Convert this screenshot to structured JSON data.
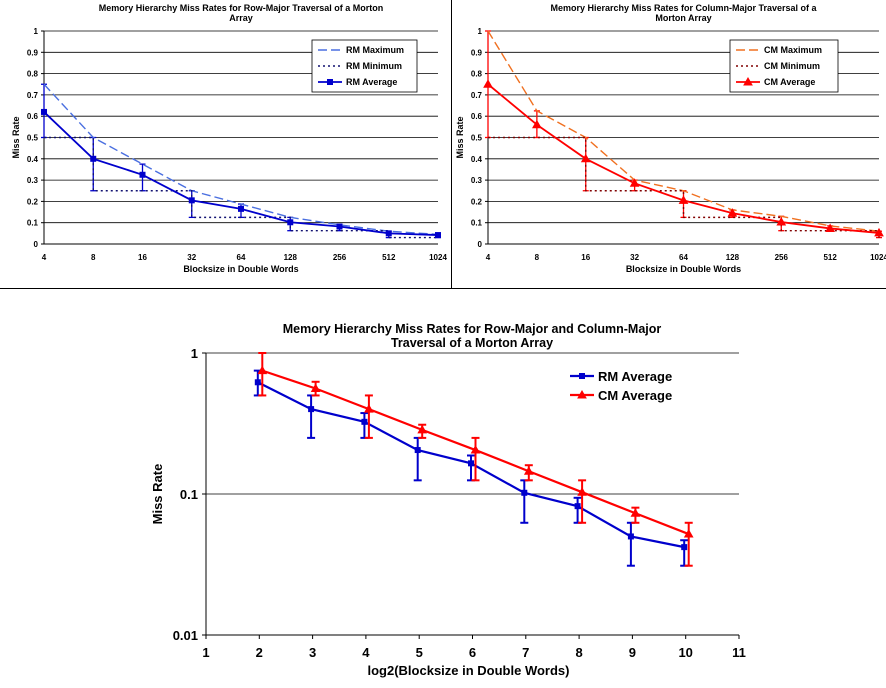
{
  "chart_data": [
    {
      "type": "line",
      "title_lines": [
        "Memory Hierarchy Miss Rates for Row-Major Traversal of a Morton",
        "Array"
      ],
      "xlabel": "Blocksize in Double Words",
      "ylabel": "Miss Rate",
      "categories": [
        "4",
        "8",
        "16",
        "32",
        "64",
        "128",
        "256",
        "512",
        "1024"
      ],
      "yticks": [
        "0",
        "0.1",
        "0.2",
        "0.3",
        "0.4",
        "0.5",
        "0.6",
        "0.7",
        "0.8",
        "0.9",
        "1"
      ],
      "ylim": [
        0,
        1
      ],
      "grid": true,
      "legend_position": "top-right",
      "series": [
        {
          "name": "RM Maximum",
          "values": [
            0.75,
            0.5,
            0.375,
            0.25,
            0.1875,
            0.125,
            0.09,
            0.06,
            0.045
          ],
          "color": "#4a6fe0",
          "style": "long-dash"
        },
        {
          "name": "RM Minimum",
          "values": [
            0.5,
            0.25,
            0.25,
            0.125,
            0.125,
            0.0625,
            0.0625,
            0.03,
            0.03
          ],
          "color": "#101070",
          "style": "dotted"
        },
        {
          "name": "RM Average",
          "values": [
            0.62,
            0.4,
            0.325,
            0.205,
            0.165,
            0.102,
            0.082,
            0.05,
            0.042
          ],
          "color": "#0000cc",
          "style": "solid",
          "marker": "square"
        }
      ]
    },
    {
      "type": "line",
      "title_lines": [
        "Memory Hierarchy Miss Rates for Column-Major Traversal of a",
        "Morton Array"
      ],
      "xlabel": "Blocksize in Double Words",
      "ylabel": "Miss Rate",
      "categories": [
        "4",
        "8",
        "16",
        "32",
        "64",
        "128",
        "256",
        "512",
        "1024"
      ],
      "yticks": [
        "0",
        "0.1",
        "0.2",
        "0.3",
        "0.4",
        "0.5",
        "0.6",
        "0.7",
        "0.8",
        "0.9",
        "1"
      ],
      "ylim": [
        0,
        1
      ],
      "grid": true,
      "legend_position": "top-right",
      "series": [
        {
          "name": "CM Maximum",
          "values": [
            1.0,
            0.625,
            0.5,
            0.3,
            0.25,
            0.16,
            0.13,
            0.085,
            0.06
          ],
          "color": "#f07020",
          "style": "long-dash"
        },
        {
          "name": "CM Minimum",
          "values": [
            0.5,
            0.5,
            0.25,
            0.25,
            0.125,
            0.125,
            0.0625,
            0.0625,
            0.03
          ],
          "color": "#800000",
          "style": "dotted"
        },
        {
          "name": "CM Average",
          "values": [
            0.75,
            0.56,
            0.4,
            0.285,
            0.205,
            0.145,
            0.103,
            0.073,
            0.052
          ],
          "color": "#ff0000",
          "style": "solid",
          "marker": "triangle"
        }
      ]
    },
    {
      "type": "line",
      "title_lines": [
        "Memory Hierarchy Miss Rates for Row-Major and Column-Major",
        "Traversal of a Morton Array"
      ],
      "xlabel": "log2(Blocksize in Double Words)",
      "ylabel": "Miss Rate",
      "yscale": "log",
      "ylim": [
        0.01,
        1
      ],
      "yticks": [
        "0.01",
        "0.1",
        "1"
      ],
      "xlim": [
        1,
        11
      ],
      "xticks": [
        "1",
        "2",
        "3",
        "4",
        "5",
        "6",
        "7",
        "8",
        "9",
        "10",
        "11"
      ],
      "grid": true,
      "legend_position": "top-right",
      "series": [
        {
          "name": "RM Average",
          "x": [
            2,
            3,
            4,
            5,
            6,
            7,
            8,
            9,
            10
          ],
          "values": [
            0.62,
            0.4,
            0.325,
            0.205,
            0.165,
            0.102,
            0.082,
            0.05,
            0.042
          ],
          "err_high": [
            0.75,
            0.5,
            0.375,
            0.25,
            0.1875,
            0.125,
            0.094,
            0.0625,
            0.047
          ],
          "err_low": [
            0.5,
            0.25,
            0.25,
            0.125,
            0.125,
            0.0625,
            0.0625,
            0.031,
            0.031
          ],
          "color": "#0000cc",
          "marker": "square"
        },
        {
          "name": "CM Average",
          "x": [
            2,
            3,
            4,
            5,
            6,
            7,
            8,
            9,
            10
          ],
          "values": [
            0.75,
            0.56,
            0.4,
            0.285,
            0.205,
            0.145,
            0.103,
            0.073,
            0.052
          ],
          "err_high": [
            1.0,
            0.625,
            0.5,
            0.31,
            0.25,
            0.16,
            0.125,
            0.08,
            0.0625
          ],
          "err_low": [
            0.5,
            0.5,
            0.25,
            0.25,
            0.125,
            0.125,
            0.0625,
            0.0625,
            0.031
          ],
          "color": "#ff0000",
          "marker": "triangle"
        }
      ]
    }
  ]
}
